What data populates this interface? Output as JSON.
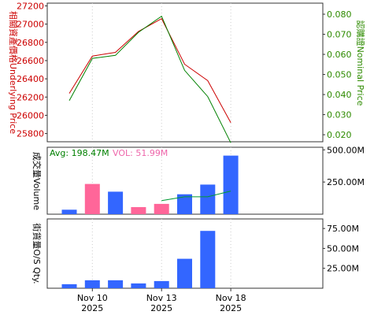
{
  "chart_data": [
    {
      "id": "price",
      "type": "line",
      "ylabel_left": "相關資產價格Underlying Price",
      "ylabel_right": "認購證Nominal Price",
      "left_axis": {
        "ticks": [
          25800,
          26000,
          26200,
          26400,
          26600,
          26800,
          27000,
          27200
        ],
        "range": [
          25710,
          27230
        ]
      },
      "right_axis": {
        "ticks": [
          0.02,
          0.03,
          0.04,
          0.05,
          0.06,
          0.07,
          0.08
        ],
        "ticks_text": [
          "0.020",
          "0.030",
          "0.040",
          "0.050",
          "0.060",
          "0.070",
          "0.080"
        ],
        "range": [
          0.0165,
          0.0855
        ]
      },
      "x_index": [
        0,
        1,
        2,
        3,
        4,
        5,
        6,
        7
      ],
      "series": [
        {
          "axis": "left",
          "color": "#cc0000",
          "values": [
            26240,
            26650,
            26690,
            26920,
            27060,
            26560,
            26380,
            25920
          ]
        },
        {
          "axis": "right",
          "color": "#008000",
          "values": [
            0.037,
            0.058,
            0.0595,
            0.071,
            0.079,
            0.052,
            0.039,
            0.016
          ]
        }
      ]
    },
    {
      "id": "volume",
      "type": "bar",
      "ylabel": "成交量Volume",
      "avg_label": "Avg: 198.47M",
      "vol_label": "VOL: 51.99M",
      "axis": {
        "ticks": [
          250,
          500
        ],
        "ticks_text": [
          "250.00M",
          "500.00M"
        ],
        "range": [
          0,
          520
        ]
      },
      "x_index": [
        0,
        1,
        2,
        3,
        4,
        5,
        6,
        7
      ],
      "values": [
        35,
        235,
        175,
        55,
        80,
        155,
        230,
        455
      ],
      "colors": [
        "#3366ff",
        "#ff6699",
        "#3366ff",
        "#ff6699",
        "#ff6699",
        "#3366ff",
        "#3366ff",
        "#3366ff"
      ],
      "avg_line": {
        "color": "#009933",
        "start_index": 4,
        "values": [
          105,
          135,
          135,
          180
        ]
      }
    },
    {
      "id": "outstanding",
      "type": "bar",
      "ylabel": "街貨量O/S Qty.",
      "axis": {
        "ticks": [
          25,
          50,
          75
        ],
        "ticks_text": [
          "25.00M",
          "50.00M",
          "75.00M"
        ],
        "range": [
          0,
          87
        ]
      },
      "x_index": [
        0,
        1,
        2,
        3,
        4,
        5,
        6,
        7
      ],
      "values": [
        5,
        10,
        10,
        6,
        9,
        37,
        72,
        0
      ],
      "colors": [
        "#3366ff",
        "#3366ff",
        "#3366ff",
        "#3366ff",
        "#3366ff",
        "#3366ff",
        "#3366ff",
        "#3366ff"
      ]
    }
  ],
  "x_ticks": [
    {
      "index": 1,
      "line1": "Nov 10",
      "line2": "2025"
    },
    {
      "index": 4,
      "line1": "Nov 13",
      "line2": "2025"
    },
    {
      "index": 7,
      "line1": "Nov 18",
      "line2": "2025"
    }
  ]
}
